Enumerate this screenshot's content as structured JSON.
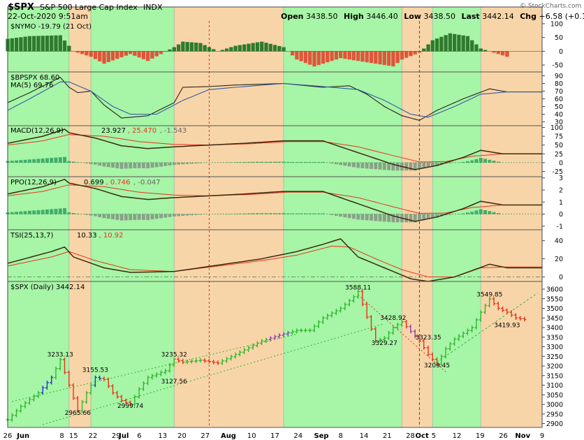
{
  "header": {
    "symbol": "$SPX",
    "name": "S&P 500 Large Cap Index",
    "exchange": "INDX",
    "datetime": "22-Oct-2020 9:51am",
    "copyright": "© StockCharts.com",
    "open_label": "Open",
    "open": "3438.50",
    "high_label": "High",
    "high": "3446.40",
    "low_label": "Low",
    "low": "3438.50",
    "last_label": "Last",
    "last": "3442.14",
    "chg_label": "Chg",
    "chg": "+6.58 (+0.19%)"
  },
  "colors": {
    "green_band": "#a7f5a7",
    "orange_band": "#f8d5a8",
    "up": "#2db82d",
    "down": "#e8321e",
    "blue": "#2437c9",
    "purple": "#8a3fb8",
    "signal": "#e8321e",
    "line": "#3a2a10",
    "histogram": "#8aa08a",
    "histogram_pos": "#3fae6a",
    "trend": "#2db82d"
  },
  "x_axis": {
    "labels": [
      "26",
      "Jun",
      "8",
      "15",
      "22",
      "29",
      "Jul",
      "6",
      "13",
      "20",
      "27",
      "Aug",
      "10",
      "17",
      "24",
      "Sep",
      "8",
      "14",
      "21",
      "28",
      "Oct",
      "5",
      "12",
      "19",
      "26",
      "Nov",
      "9"
    ],
    "bold": [
      "Jun",
      "Jul",
      "Aug",
      "Sep",
      "Oct",
      "Nov"
    ]
  },
  "chart_data": [
    {
      "type": "area",
      "title": "$NYMO -19.79 (21 Oct)",
      "ylim": [
        -75,
        110
      ],
      "ticks": [
        "100",
        "50",
        "0",
        "-50"
      ]
    },
    {
      "type": "line",
      "title": "$BPSPX 68.60",
      "ylim": [
        25,
        95
      ],
      "ticks": [
        "90",
        "80",
        "70",
        "60",
        "50",
        "40",
        "30"
      ],
      "series": [
        {
          "name": "MA(5) 69.76"
        }
      ]
    },
    {
      "type": "line",
      "title": "MACD(12,26,9)",
      "values_text": [
        "23.927",
        "25.470",
        "-1.543"
      ],
      "ylim": [
        -40,
        105
      ],
      "ticks": [
        "100",
        "75",
        "50",
        "25",
        "0",
        "-25"
      ]
    },
    {
      "type": "line",
      "title": "PPO(12,26,9)",
      "values_text": [
        "0.699",
        "0.746",
        "-0.047"
      ],
      "ylim": [
        -1.3,
        3.1
      ],
      "ticks": [
        "3",
        "2",
        "1",
        "0",
        "-1"
      ]
    },
    {
      "type": "line",
      "title": "TSI(25,13,7)",
      "values_text": [
        "10.33",
        "10.92"
      ],
      "ylim": [
        -5,
        52
      ],
      "ticks": [
        "40",
        "20",
        "0"
      ]
    },
    {
      "type": "bar",
      "title": "$SPX (Daily) 3442.14",
      "ylim": [
        2880,
        3640
      ],
      "ticks": [
        "3600",
        "3550",
        "3500",
        "3450",
        "3400",
        "3350",
        "3300",
        "3250",
        "3200",
        "3150",
        "3100",
        "3050",
        "3000",
        "2950",
        "2900"
      ],
      "annotations": [
        "3233.13",
        "2965.66",
        "3155.53",
        "2999.74",
        "3235.32",
        "3127.56",
        "3588.11",
        "3428.92",
        "3329.27",
        "3323.35",
        "3209.45",
        "3549.85",
        "3419.93"
      ]
    }
  ]
}
